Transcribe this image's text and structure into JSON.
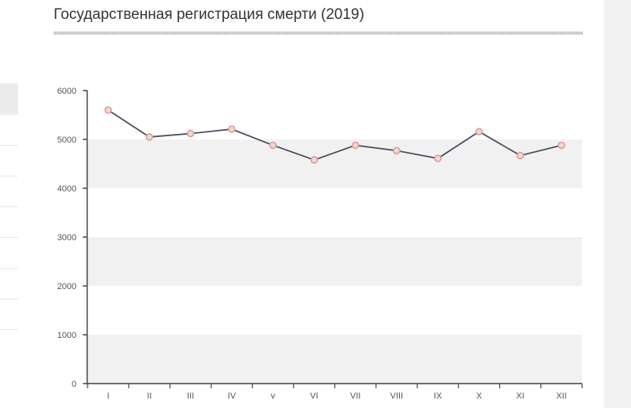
{
  "page": {
    "title": "Государственная регистрация смерти (2019)"
  },
  "chart_data": {
    "type": "line",
    "title": "Государственная регистрация смерти (2019)",
    "xlabel": "",
    "ylabel": "",
    "categories": [
      "I",
      "II",
      "III",
      "IV",
      "v",
      "VI",
      "VII",
      "VIII",
      "IX",
      "X",
      "XI",
      "XII"
    ],
    "series": [
      {
        "values": [
          5600,
          5050,
          5120,
          5210,
          4880,
          4580,
          4880,
          4770,
          4610,
          5160,
          4670,
          4880
        ]
      }
    ],
    "ylim": [
      0,
      6000
    ],
    "yticks": [
      0,
      1000,
      2000,
      3000,
      4000,
      5000,
      6000
    ],
    "grid": "alternating horizontal bands",
    "legend": "none",
    "colors": {
      "line": "#4a5060",
      "marker_fill": "#f3d6d0",
      "marker_stroke": "#d79a90",
      "band": "#f1f1f1",
      "axis": "#3c4150"
    }
  }
}
